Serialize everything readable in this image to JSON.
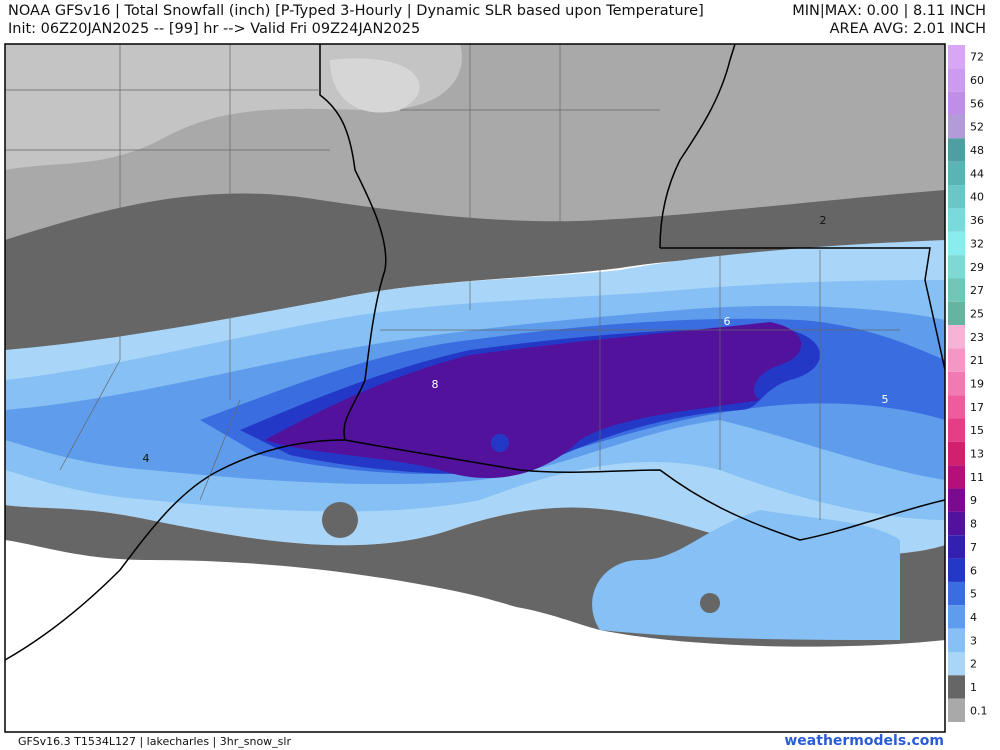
{
  "header": {
    "title": "NOAA GFSv16 | Total Snowfall (inch) [P-Typed 3-Hourly | Dynamic SLR based upon Temperature]",
    "init": "Init: 06Z20JAN2025 -- [99] hr --> Valid Fri 09Z24JAN2025",
    "min_max": "MIN|MAX: 0.00 | 8.11 INCH",
    "area_avg": "AREA AVG: 2.01 INCH"
  },
  "colorbar": {
    "levels": [
      {
        "label": 72,
        "color": "#d9a6f5"
      },
      {
        "label": 60,
        "color": "#cc9af0"
      },
      {
        "label": 56,
        "color": "#bf8ee6"
      },
      {
        "label": 52,
        "color": "#b29bd8"
      },
      {
        "label": 48,
        "color": "#4f9fa2"
      },
      {
        "label": 44,
        "color": "#5cb3b4"
      },
      {
        "label": 40,
        "color": "#6cc6c8"
      },
      {
        "label": 36,
        "color": "#7ad9db"
      },
      {
        "label": 32,
        "color": "#8aeded"
      },
      {
        "label": 29,
        "color": "#7fd8d4"
      },
      {
        "label": 27,
        "color": "#72c6b8"
      },
      {
        "label": 25,
        "color": "#66b4a0"
      },
      {
        "label": 23,
        "color": "#f7b3d6"
      },
      {
        "label": 21,
        "color": "#f597c4"
      },
      {
        "label": 19,
        "color": "#f27ab2"
      },
      {
        "label": 17,
        "color": "#ee5c9e"
      },
      {
        "label": 15,
        "color": "#e53d86"
      },
      {
        "label": 13,
        "color": "#d21f6e"
      },
      {
        "label": 11,
        "color": "#b50f7a"
      },
      {
        "label": 9,
        "color": "#7a0a8e"
      },
      {
        "label": 8,
        "color": "#52129c"
      },
      {
        "label": 7,
        "color": "#3420b0"
      },
      {
        "label": 6,
        "color": "#2438c8"
      },
      {
        "label": 5,
        "color": "#3a6ee0"
      },
      {
        "label": 4,
        "color": "#5f9cec"
      },
      {
        "label": 3,
        "color": "#86c0f4"
      },
      {
        "label": 2,
        "color": "#a9d6f8"
      },
      {
        "label": 1,
        "color": "#666666"
      },
      {
        "label": 0.1,
        "color": "#a9a9a9"
      }
    ]
  },
  "contour_labels": [
    "2",
    "6",
    "8",
    "5",
    "4"
  ],
  "footer": {
    "model": "GFSv16.3 T1534L127 | lakecharles | 3hr_snow_slr",
    "credit": "weathermodels.com"
  }
}
